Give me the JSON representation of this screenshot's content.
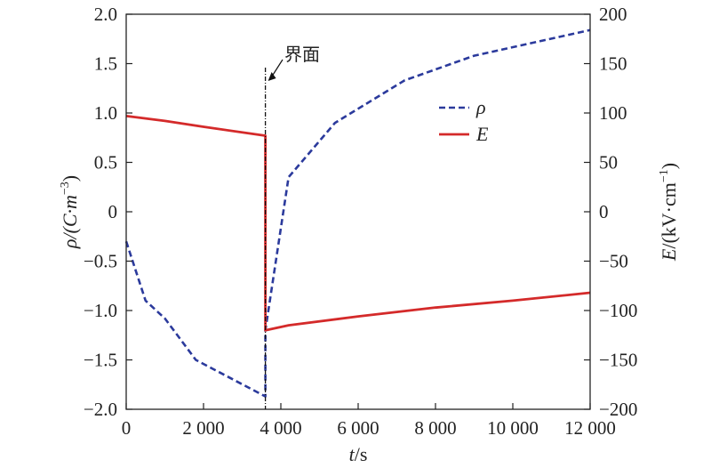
{
  "chart_data": {
    "type": "line",
    "x_label_var": "t",
    "x_label_unit": "/s",
    "y_left_label": "ρ/(C·m",
    "y_left_label_exp": "−3",
    "y_left_label_close": ")",
    "y_right_label_var": "E",
    "y_right_label_unit": "/(kV·cm",
    "y_right_label_exp": "−1",
    "y_right_label_close": ")",
    "xlim": [
      0,
      12000
    ],
    "y_left_lim": [
      -2.0,
      2.0
    ],
    "y_right_lim": [
      -200,
      200
    ],
    "x_ticks": [
      0,
      2000,
      4000,
      6000,
      8000,
      10000,
      12000
    ],
    "x_tick_labels": [
      "0",
      "2 000",
      "4 000",
      "6 000",
      "8 000",
      "10 000",
      "12 000"
    ],
    "y_left_ticks": [
      -2.0,
      -1.5,
      -1.0,
      -0.5,
      0,
      0.5,
      1.0,
      1.5,
      2.0
    ],
    "y_left_tick_labels": [
      "−2.0",
      "−1.5",
      "−1.0",
      "−0.5",
      "0",
      "0.5",
      "1.0",
      "1.5",
      "2.0"
    ],
    "y_right_ticks": [
      -200,
      -150,
      -100,
      -50,
      0,
      50,
      100,
      150,
      200
    ],
    "y_right_tick_labels": [
      "−200",
      "−150",
      "−100",
      "−50",
      "0",
      "50",
      "100",
      "150",
      "200"
    ],
    "legend_position": "upper-right",
    "interface": {
      "x": 3600,
      "label": "界面"
    },
    "series": [
      {
        "name": "ρ",
        "axis": "left",
        "style": "dashed",
        "color": "#2b3a9c",
        "x": [
          0,
          500,
          1000,
          1800,
          3600,
          3600,
          4200,
          5400,
          7200,
          9000,
          12000
        ],
        "y": [
          -0.3,
          -0.9,
          -1.08,
          -1.5,
          -1.87,
          -1.2,
          0.35,
          0.9,
          1.33,
          1.58,
          1.84
        ]
      },
      {
        "name": "E",
        "axis": "right",
        "style": "solid",
        "color": "#d42a2a",
        "x": [
          0,
          1000,
          2000,
          3600,
          3600,
          4200,
          6000,
          8000,
          10000,
          12000
        ],
        "y": [
          97,
          92,
          86,
          77,
          -120,
          -115,
          -106,
          -97,
          -90,
          -82
        ]
      }
    ]
  }
}
